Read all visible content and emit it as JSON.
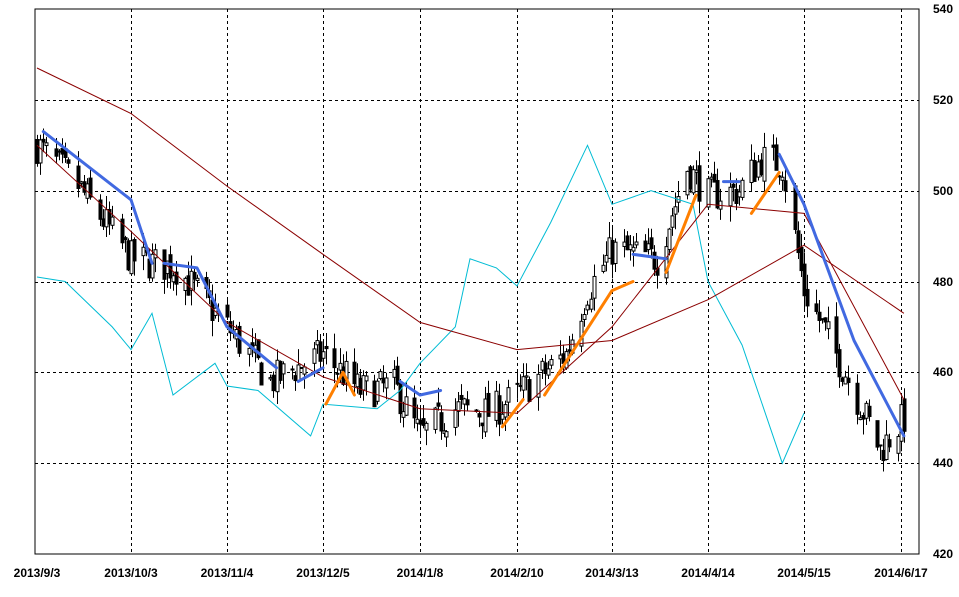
{
  "chart_data": {
    "type": "candlestick",
    "title": "",
    "xlabel": "",
    "ylabel": "",
    "ylim": [
      420,
      540
    ],
    "grid": true,
    "legend": "none",
    "y_ticks": [
      "540",
      "520",
      "500",
      "480",
      "460",
      "440",
      "420"
    ],
    "x_ticks": [
      {
        "label": "2013/9/3",
        "date": "2013-09-03"
      },
      {
        "label": "2013/10/3",
        "date": "2013-10-03"
      },
      {
        "label": "2013/11/4",
        "date": "2013-11-04"
      },
      {
        "label": "2013/12/5",
        "date": "2013-12-05"
      },
      {
        "label": "2014/1/8",
        "date": "2014-01-08"
      },
      {
        "label": "2014/2/10",
        "date": "2014-02-10"
      },
      {
        "label": "2014/3/13",
        "date": "2014-03-13"
      },
      {
        "label": "2014/4/14",
        "date": "2014-04-14"
      },
      {
        "label": "2014/5/15",
        "date": "2014-05-15"
      },
      {
        "label": "2014/6/17",
        "date": "2014-06-17"
      }
    ],
    "price_anchors": [
      {
        "date": "2013-09-03",
        "close": 510
      },
      {
        "date": "2013-09-15",
        "close": 502
      },
      {
        "date": "2013-10-03",
        "close": 485
      },
      {
        "date": "2013-10-18",
        "close": 483
      },
      {
        "date": "2013-11-04",
        "close": 470
      },
      {
        "date": "2013-11-18",
        "close": 458
      },
      {
        "date": "2013-12-05",
        "close": 464
      },
      {
        "date": "2013-12-18",
        "close": 456
      },
      {
        "date": "2013-12-30",
        "close": 457
      },
      {
        "date": "2014-01-08",
        "close": 446
      },
      {
        "date": "2014-01-20",
        "close": 452
      },
      {
        "date": "2014-02-01",
        "close": 451
      },
      {
        "date": "2014-02-10",
        "close": 455
      },
      {
        "date": "2014-02-26",
        "close": 464
      },
      {
        "date": "2014-03-05",
        "close": 478
      },
      {
        "date": "2014-03-13",
        "close": 487
      },
      {
        "date": "2014-03-28",
        "close": 485
      },
      {
        "date": "2014-04-07",
        "close": 505
      },
      {
        "date": "2014-04-14",
        "close": 499
      },
      {
        "date": "2014-04-24",
        "close": 500
      },
      {
        "date": "2014-05-01",
        "close": 507
      },
      {
        "date": "2014-05-08",
        "close": 506
      },
      {
        "date": "2014-05-15",
        "close": 478
      },
      {
        "date": "2014-05-29",
        "close": 460
      },
      {
        "date": "2014-06-10",
        "close": 443
      },
      {
        "date": "2014-06-18",
        "close": 450
      }
    ],
    "overlays": {
      "ma_long": {
        "color": "#8b0000",
        "points": [
          {
            "date": "2013-09-03",
            "value": 527
          },
          {
            "date": "2013-10-03",
            "value": 517
          },
          {
            "date": "2013-11-04",
            "value": 501
          },
          {
            "date": "2013-12-05",
            "value": 486
          },
          {
            "date": "2014-01-08",
            "value": 471
          },
          {
            "date": "2014-02-10",
            "value": 465
          },
          {
            "date": "2014-03-13",
            "value": 467
          },
          {
            "date": "2014-04-14",
            "value": 476
          },
          {
            "date": "2014-05-15",
            "value": 488
          },
          {
            "date": "2014-06-18",
            "value": 473
          }
        ]
      },
      "ma_short": {
        "color": "#8b0000",
        "points": [
          {
            "date": "2013-09-03",
            "value": 510
          },
          {
            "date": "2013-10-03",
            "value": 491
          },
          {
            "date": "2013-11-04",
            "value": 471
          },
          {
            "date": "2013-12-05",
            "value": 459
          },
          {
            "date": "2014-01-08",
            "value": 452
          },
          {
            "date": "2014-02-10",
            "value": 451
          },
          {
            "date": "2014-03-13",
            "value": 470
          },
          {
            "date": "2014-04-14",
            "value": 497
          },
          {
            "date": "2014-05-15",
            "value": 495
          },
          {
            "date": "2014-06-18",
            "value": 454
          }
        ]
      },
      "blue_line": {
        "color": "#4169e1",
        "segments": [
          [
            {
              "date": "2013-09-05",
              "value": 513
            },
            {
              "date": "2013-10-03",
              "value": 498
            },
            {
              "date": "2013-10-10",
              "value": 484
            }
          ],
          [
            {
              "date": "2013-10-14",
              "value": 484
            },
            {
              "date": "2013-10-25",
              "value": 483
            },
            {
              "date": "2013-11-04",
              "value": 470
            },
            {
              "date": "2013-11-20",
              "value": 461
            }
          ],
          [
            {
              "date": "2013-11-27",
              "value": 458
            },
            {
              "date": "2013-12-05",
              "value": 461
            }
          ],
          [
            {
              "date": "2014-01-01",
              "value": 458
            },
            {
              "date": "2014-01-08",
              "value": 455
            },
            {
              "date": "2014-01-15",
              "value": 456
            }
          ],
          [
            {
              "date": "2014-03-20",
              "value": 486
            },
            {
              "date": "2014-03-31",
              "value": 485
            }
          ],
          [
            {
              "date": "2014-04-19",
              "value": 502
            },
            {
              "date": "2014-04-24",
              "value": 502
            }
          ],
          [
            {
              "date": "2014-05-07",
              "value": 508
            },
            {
              "date": "2014-05-15",
              "value": 497
            },
            {
              "date": "2014-06-01",
              "value": 467
            },
            {
              "date": "2014-06-18",
              "value": 446
            }
          ]
        ]
      },
      "orange_line": {
        "color": "#ff7f00",
        "segments": [
          [
            {
              "date": "2013-12-06",
              "value": 453
            },
            {
              "date": "2013-12-12",
              "value": 460
            },
            {
              "date": "2013-12-16",
              "value": 455
            }
          ],
          [
            {
              "date": "2014-02-05",
              "value": 448
            },
            {
              "date": "2014-02-12",
              "value": 454
            }
          ],
          [
            {
              "date": "2014-02-19",
              "value": 455
            },
            {
              "date": "2014-03-13",
              "value": 478
            },
            {
              "date": "2014-03-20",
              "value": 480
            }
          ],
          [
            {
              "date": "2014-03-31",
              "value": 482
            },
            {
              "date": "2014-04-10",
              "value": 499
            }
          ],
          [
            {
              "date": "2014-04-28",
              "value": 495
            },
            {
              "date": "2014-05-07",
              "value": 504
            }
          ]
        ]
      },
      "cyan_line": {
        "color": "#00bcd4",
        "points": [
          {
            "date": "2013-09-03",
            "value": 481
          },
          {
            "date": "2013-09-12",
            "value": 480
          },
          {
            "date": "2013-09-27",
            "value": 470
          },
          {
            "date": "2013-10-03",
            "value": 465
          },
          {
            "date": "2013-10-10",
            "value": 473
          },
          {
            "date": "2013-10-17",
            "value": 455
          },
          {
            "date": "2013-10-31",
            "value": 462
          },
          {
            "date": "2013-11-04",
            "value": 457
          },
          {
            "date": "2013-11-14",
            "value": 456
          },
          {
            "date": "2013-12-01",
            "value": 446
          },
          {
            "date": "2013-12-05",
            "value": 453
          },
          {
            "date": "2013-12-24",
            "value": 452
          },
          {
            "date": "2014-01-01",
            "value": 456
          },
          {
            "date": "2014-01-08",
            "value": 462
          },
          {
            "date": "2014-01-20",
            "value": 470
          },
          {
            "date": "2014-01-25",
            "value": 485
          },
          {
            "date": "2014-02-03",
            "value": 483
          },
          {
            "date": "2014-02-10",
            "value": 479
          },
          {
            "date": "2014-02-21",
            "value": 493
          },
          {
            "date": "2014-03-05",
            "value": 510
          },
          {
            "date": "2014-03-13",
            "value": 497
          },
          {
            "date": "2014-03-26",
            "value": 500
          },
          {
            "date": "2014-04-09",
            "value": 497
          },
          {
            "date": "2014-04-14",
            "value": 480
          },
          {
            "date": "2014-04-25",
            "value": 466
          },
          {
            "date": "2014-05-08",
            "value": 440
          },
          {
            "date": "2014-05-15",
            "value": 451
          }
        ]
      }
    }
  }
}
